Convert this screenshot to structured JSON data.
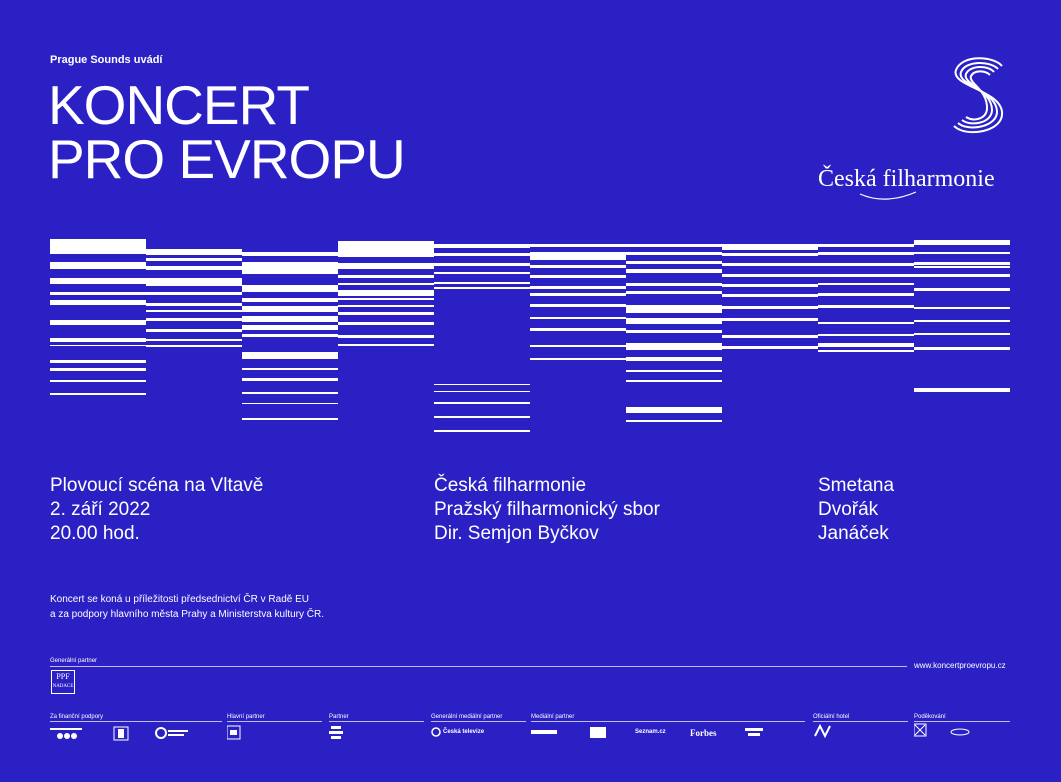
{
  "presenter": "Prague Sounds uvádí",
  "title": [
    "KONCERT",
    "PRO EVROPU"
  ],
  "brand": {
    "name": "Česká filharmonie"
  },
  "colors": {
    "background": "#2b20c4",
    "foreground": "#ffffff"
  },
  "venue": [
    "Plovoucí scéna na Vltavě",
    "2. září 2022",
    "20.00 hod."
  ],
  "performers": [
    "Česká filharmonie",
    "Pražský filharmonický sbor",
    "Dir. Semjon Byčkov"
  ],
  "composers": [
    "Smetana",
    "Dvořák",
    "Janáček"
  ],
  "note": [
    "Koncert se koná u příležitosti předsednictví ČR v Radě EU",
    "a za podpory hlavního města Prahy a Ministerstva kultury ČR."
  ],
  "footer": {
    "general_partner_label": "Generální partner",
    "general_partner_logo": [
      "PPF",
      "NADACE"
    ],
    "url": "www.koncertproevropu.cz",
    "groups": [
      {
        "label": "Za finanční podpory"
      },
      {
        "label": "Hlavní partner"
      },
      {
        "label": "Partner"
      },
      {
        "label": "Generální mediální partner"
      },
      {
        "label": "Mediální partner"
      },
      {
        "label": "Oficiální hotel"
      },
      {
        "label": "Poděkování"
      }
    ],
    "media_logos": [
      "Česká televize",
      "Forbes",
      "Seznam.cz"
    ]
  }
}
